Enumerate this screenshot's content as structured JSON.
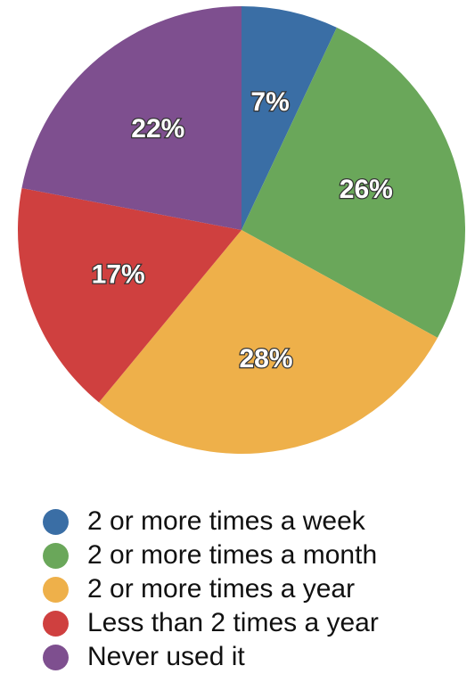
{
  "chart_data": {
    "type": "pie",
    "categories": [
      "2 or more times a week",
      "2 or more times a month",
      "2 or more times a year",
      "Less than 2 times a year",
      "Never used it"
    ],
    "values": [
      7,
      26,
      28,
      17,
      22
    ],
    "data_labels": [
      "7%",
      "26%",
      "28%",
      "17%",
      "22%"
    ],
    "colors": [
      "#3a6ea5",
      "#6aa75a",
      "#eeb04a",
      "#cf403f",
      "#7e4f8f"
    ],
    "start_angle": "12 o'clock",
    "direction": "clockwise",
    "title": "",
    "legend_placement": "bottom"
  }
}
